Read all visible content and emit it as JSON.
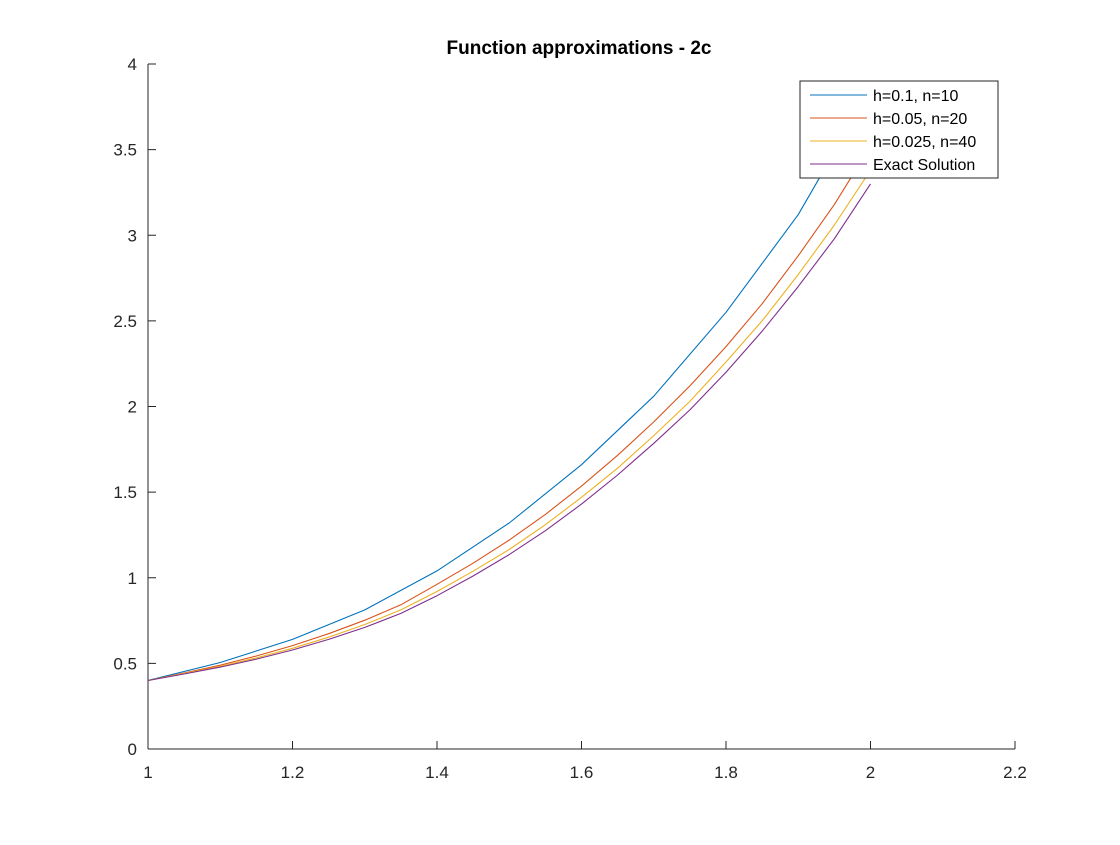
{
  "chart_data": {
    "type": "line",
    "title": "Function approximations - 2c",
    "xlabel": "",
    "ylabel": "",
    "xlim": [
      1,
      2.2
    ],
    "ylim": [
      0,
      4
    ],
    "xticks": [
      1,
      1.2,
      1.4,
      1.6,
      1.8,
      2,
      2.2
    ],
    "xtick_labels": [
      "1",
      "1.2",
      "1.4",
      "1.6",
      "1.8",
      "2",
      "2.2"
    ],
    "yticks": [
      0,
      0.5,
      1,
      1.5,
      2,
      2.5,
      3,
      3.5,
      4
    ],
    "ytick_labels": [
      "0",
      "0.5",
      "1",
      "1.5",
      "2",
      "2.5",
      "3",
      "3.5",
      "4"
    ],
    "grid": false,
    "legend_position": "top-right",
    "series": [
      {
        "name": "h=0.1, n=10",
        "color": "#0072BD",
        "x": [
          1.0,
          1.1,
          1.2,
          1.3,
          1.4,
          1.5,
          1.6,
          1.7,
          1.8,
          1.9,
          2.0
        ],
        "y": [
          0.4,
          0.505,
          0.64,
          0.812,
          1.04,
          1.32,
          1.66,
          2.06,
          2.55,
          3.12,
          3.85
        ]
      },
      {
        "name": "h=0.05, n=20",
        "color": "#D95319",
        "x": [
          1.0,
          1.05,
          1.1,
          1.15,
          1.2,
          1.25,
          1.3,
          1.35,
          1.4,
          1.45,
          1.5,
          1.55,
          1.6,
          1.65,
          1.7,
          1.75,
          1.8,
          1.85,
          1.9,
          1.95,
          2.0
        ],
        "y": [
          0.4,
          0.443,
          0.49,
          0.543,
          0.604,
          0.673,
          0.752,
          0.842,
          0.962,
          1.085,
          1.22,
          1.37,
          1.535,
          1.715,
          1.91,
          2.12,
          2.35,
          2.6,
          2.88,
          3.18,
          3.52
        ]
      },
      {
        "name": "h=0.025, n=40",
        "color": "#EDB120",
        "x": [
          1.0,
          1.05,
          1.1,
          1.15,
          1.2,
          1.25,
          1.3,
          1.35,
          1.4,
          1.45,
          1.5,
          1.55,
          1.6,
          1.65,
          1.7,
          1.75,
          1.8,
          1.85,
          1.9,
          1.95,
          2.0
        ],
        "y": [
          0.4,
          0.44,
          0.483,
          0.532,
          0.588,
          0.653,
          0.727,
          0.812,
          0.92,
          1.038,
          1.165,
          1.31,
          1.47,
          1.64,
          1.83,
          2.03,
          2.26,
          2.5,
          2.77,
          3.06,
          3.38
        ]
      },
      {
        "name": "Exact Solution",
        "color": "#7E2F8E",
        "x": [
          1.0,
          1.05,
          1.1,
          1.15,
          1.2,
          1.25,
          1.3,
          1.35,
          1.4,
          1.45,
          1.5,
          1.55,
          1.6,
          1.65,
          1.7,
          1.75,
          1.8,
          1.85,
          1.9,
          1.95,
          2.0
        ],
        "y": [
          0.4,
          0.438,
          0.478,
          0.525,
          0.578,
          0.64,
          0.71,
          0.792,
          0.895,
          1.01,
          1.135,
          1.275,
          1.43,
          1.6,
          1.785,
          1.98,
          2.2,
          2.44,
          2.7,
          2.98,
          3.3
        ]
      }
    ]
  }
}
